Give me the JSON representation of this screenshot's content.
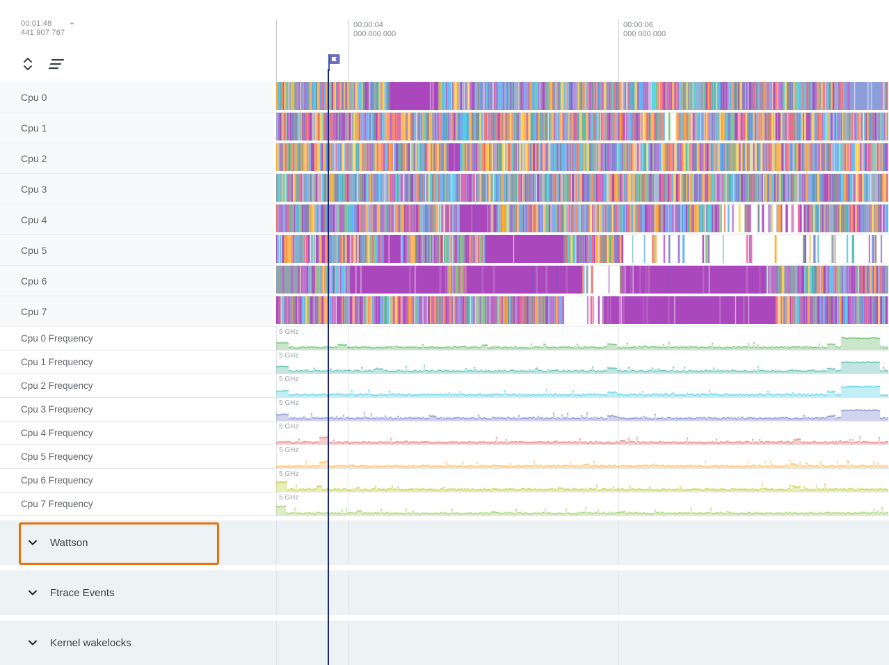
{
  "colors": {
    "accent_line": "#1A237E",
    "flag": "#5C6BC0",
    "grid": "#e1e4e8",
    "group_bg": "#edf2f4",
    "highlight_box": "#E8710A",
    "label_text": "#5f6368"
  },
  "icons": {
    "expand_collapse": "unfold-chevrons-icon",
    "sort": "sort-lines-icon",
    "flag": "flag-marker-icon",
    "group_chevron": "chevron-down-icon"
  },
  "header": {
    "time_primary": "00:01:48",
    "plus": "+",
    "time_secondary": "441 907 767",
    "ruler_marks": [
      {
        "time": "00:00:04",
        "sub": "000 000 000"
      },
      {
        "time": "00:00:06",
        "sub": "000 000 000"
      }
    ]
  },
  "sched_palette": [
    "#64B5F6",
    "#64B5F6",
    "#5C9CE6",
    "#7986CB",
    "#9FA8DA",
    "#90A4AE",
    "#BA68C8",
    "#AB47BC",
    "#9575CD",
    "#4DB6AC",
    "#4DD0E1",
    "#FFB74D",
    "#FFA726",
    "#FF8A65",
    "#E57373",
    "#FFD54F",
    "#81C784",
    "#78909C",
    "#F06292",
    "#A1887F"
  ],
  "cpu_tracks": [
    {
      "name": "Cpu 0",
      "seed": 11,
      "purple_bias": 0.1,
      "blocks": [
        [
          0.185,
          0.265,
          "#AB47BC"
        ],
        [
          0.925,
          0.99,
          "#8C9EDA"
        ]
      ],
      "sparse": []
    },
    {
      "name": "Cpu 1",
      "seed": 22,
      "purple_bias": 0.08,
      "warm_bias": 0.12,
      "blocks": [],
      "sparse": [
        [
          0.63,
          0.655,
          0.55
        ]
      ]
    },
    {
      "name": "Cpu 2",
      "seed": 33,
      "purple_bias": 0.07,
      "warm_bias": 0.2,
      "blocks": [
        [
          0.28,
          0.3,
          "#AB47BC"
        ]
      ],
      "sparse": []
    },
    {
      "name": "Cpu 3",
      "seed": 44,
      "purple_bias": 0.08,
      "gray_bias": 0.18,
      "blocks": [],
      "sparse": []
    },
    {
      "name": "Cpu 4",
      "seed": 55,
      "purple_bias": 0.14,
      "blocks": [
        [
          0.3,
          0.345,
          "#AB47BC"
        ]
      ],
      "sparse": [
        [
          0.72,
          0.86,
          0.5
        ]
      ]
    },
    {
      "name": "Cpu 5",
      "seed": 66,
      "purple_bias": 0.15,
      "warm_bias": 0.1,
      "blocks": [
        [
          0.175,
          0.205,
          "#AB47BC"
        ],
        [
          0.34,
          0.47,
          "#AB47BC"
        ]
      ],
      "sparse": [
        [
          0.565,
          1,
          0.28
        ]
      ]
    },
    {
      "name": "Cpu 6",
      "seed": 77,
      "purple_bias": 0.28,
      "blocks": [
        [
          0,
          0.035,
          "#90A4AE"
        ],
        [
          0.12,
          0.28,
          "#AB47BC"
        ],
        [
          0.31,
          0.5,
          "#AB47BC"
        ],
        [
          0.565,
          0.8,
          "#AB47BC"
        ]
      ],
      "sparse": [
        [
          0.5,
          0.56,
          0.45
        ]
      ]
    },
    {
      "name": "Cpu 7",
      "seed": 88,
      "purple_bias": 0.3,
      "blocks": [
        [
          0.535,
          0.815,
          "#AB47BC"
        ]
      ],
      "sparse": [
        [
          0.47,
          0.53,
          0.4
        ]
      ]
    }
  ],
  "freq_tracks": [
    {
      "name": "Cpu 0 Frequency",
      "scale_label": "5 GHz",
      "color": "#66BB6A",
      "seed": 101,
      "base": 2.2,
      "bumps": [
        [
          0,
          0.02,
          9
        ],
        [
          0.1,
          0.115,
          6
        ],
        [
          0.335,
          0.345,
          6
        ],
        [
          0.54,
          0.555,
          7
        ],
        [
          0.9,
          0.912,
          7
        ],
        [
          0.922,
          0.985,
          16
        ]
      ]
    },
    {
      "name": "Cpu 1 Frequency",
      "scale_label": "5 GHz",
      "color": "#4DB6AC",
      "seed": 102,
      "base": 2.2,
      "bumps": [
        [
          0,
          0.02,
          9
        ],
        [
          0.16,
          0.175,
          6
        ],
        [
          0.54,
          0.555,
          7
        ],
        [
          0.9,
          0.912,
          6
        ],
        [
          0.922,
          0.985,
          15
        ]
      ]
    },
    {
      "name": "Cpu 2 Frequency",
      "scale_label": "5 GHz",
      "color": "#4DD0E1",
      "seed": 103,
      "base": 2.2,
      "bumps": [
        [
          0,
          0.02,
          8
        ],
        [
          0.54,
          0.555,
          6
        ],
        [
          0.9,
          0.912,
          7
        ],
        [
          0.922,
          0.985,
          14
        ]
      ]
    },
    {
      "name": "Cpu 3 Frequency",
      "scale_label": "5 GHz",
      "color": "#7986CB",
      "seed": 104,
      "base": 2.2,
      "bumps": [
        [
          0,
          0.02,
          8
        ],
        [
          0.25,
          0.26,
          6
        ],
        [
          0.54,
          0.555,
          6
        ],
        [
          0.9,
          0.912,
          6
        ],
        [
          0.922,
          0.985,
          14
        ]
      ]
    },
    {
      "name": "Cpu 4 Frequency",
      "scale_label": "5 GHz",
      "color": "#E57373",
      "seed": 105,
      "base": 1.6,
      "bumps": [
        [
          0.07,
          0.082,
          9
        ],
        [
          0.56,
          0.57,
          4
        ],
        [
          0.845,
          0.855,
          6
        ]
      ]
    },
    {
      "name": "Cpu 5 Frequency",
      "scale_label": "5 GHz",
      "color": "#FFB74D",
      "seed": 106,
      "base": 1.6,
      "bumps": [
        [
          0.07,
          0.082,
          8
        ],
        [
          0.5,
          0.51,
          4
        ],
        [
          0.84,
          0.85,
          5
        ]
      ]
    },
    {
      "name": "Cpu 6 Frequency",
      "scale_label": "5 GHz",
      "color": "#C0CA33",
      "seed": 107,
      "base": 1.8,
      "bumps": [
        [
          0,
          0.018,
          13
        ],
        [
          0.065,
          0.075,
          7
        ],
        [
          0.13,
          0.135,
          5
        ],
        [
          0.46,
          0.47,
          4
        ],
        [
          0.845,
          0.855,
          6
        ]
      ]
    },
    {
      "name": "Cpu 7 Frequency",
      "scale_label": "5 GHz",
      "color": "#9CCC65",
      "seed": 108,
      "base": 1.8,
      "bumps": [
        [
          0,
          0.015,
          12
        ],
        [
          0.13,
          0.14,
          6
        ],
        [
          0.35,
          0.36,
          4
        ],
        [
          0.56,
          0.57,
          4
        ]
      ]
    }
  ],
  "groups": [
    {
      "label": "Wattson",
      "highlighted": true
    },
    {
      "label": "Ftrace Events",
      "highlighted": false
    },
    {
      "label": "Kernel wakelocks",
      "highlighted": false
    }
  ]
}
